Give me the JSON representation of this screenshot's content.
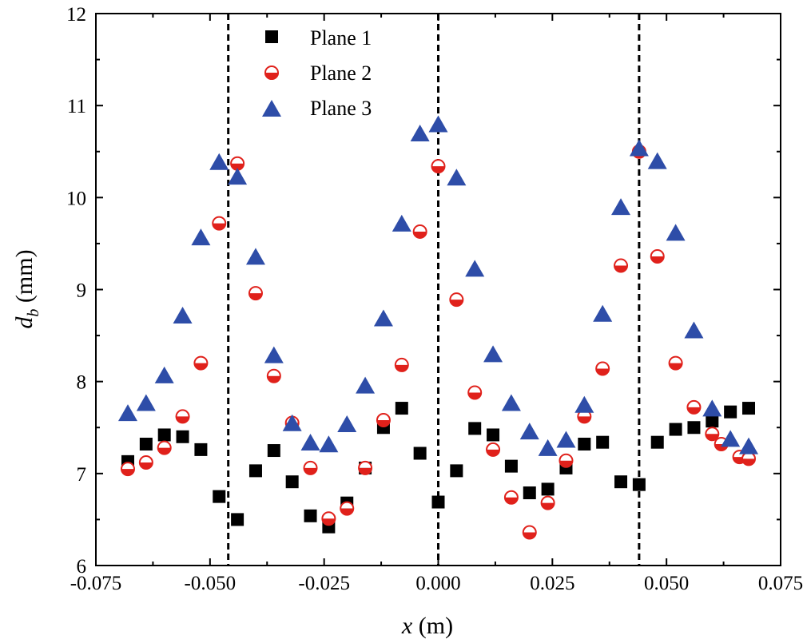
{
  "chart_data": {
    "type": "scatter",
    "title": "",
    "xlabel": "x (m)",
    "xlabel_var": "x",
    "xlabel_unit": "(m)",
    "ylabel": "d_b (mm)",
    "ylabel_var": "d",
    "ylabel_sub": "b",
    "ylabel_unit": "(mm)",
    "xlim": [
      -0.075,
      0.075
    ],
    "ylim": [
      6,
      12
    ],
    "xticks": [
      -0.075,
      -0.05,
      -0.025,
      0.0,
      0.025,
      0.05,
      0.075
    ],
    "xtick_labels": [
      "-0.075",
      "-0.050",
      "-0.025",
      "0.000",
      "0.025",
      "0.050",
      "0.075"
    ],
    "yticks": [
      6,
      7,
      8,
      9,
      10,
      11,
      12
    ],
    "ytick_labels": [
      "6",
      "7",
      "8",
      "9",
      "10",
      "11",
      "12"
    ],
    "grid": false,
    "legend_position": "top-center",
    "reference_lines_x": [
      -0.046,
      0.0,
      0.044
    ],
    "series": [
      {
        "name": "Plane 1",
        "marker": "square",
        "color": "#000000",
        "x": [
          -0.068,
          -0.064,
          -0.06,
          -0.056,
          -0.052,
          -0.048,
          -0.044,
          -0.04,
          -0.036,
          -0.032,
          -0.028,
          -0.024,
          -0.02,
          -0.016,
          -0.012,
          -0.008,
          -0.004,
          0.0,
          0.004,
          0.008,
          0.012,
          0.016,
          0.02,
          0.024,
          0.028,
          0.032,
          0.036,
          0.04,
          0.044,
          0.048,
          0.052,
          0.056,
          0.06,
          0.064,
          0.068
        ],
        "y": [
          7.13,
          7.32,
          7.42,
          7.4,
          7.26,
          6.75,
          6.5,
          7.03,
          7.25,
          6.91,
          6.54,
          6.42,
          6.68,
          7.06,
          7.5,
          7.71,
          7.22,
          6.69,
          7.03,
          7.49,
          7.42,
          7.08,
          6.79,
          6.83,
          7.06,
          7.32,
          7.34,
          6.91,
          6.88,
          7.34,
          7.48,
          7.5,
          7.57,
          7.67,
          7.71
        ]
      },
      {
        "name": "Plane 2",
        "marker": "half-circle",
        "color": "#e0211b",
        "x": [
          -0.068,
          -0.064,
          -0.06,
          -0.056,
          -0.052,
          -0.048,
          -0.044,
          -0.04,
          -0.036,
          -0.032,
          -0.028,
          -0.024,
          -0.02,
          -0.016,
          -0.012,
          -0.008,
          -0.004,
          0.0,
          0.004,
          0.008,
          0.012,
          0.016,
          0.02,
          0.024,
          0.028,
          0.032,
          0.036,
          0.04,
          0.044,
          0.048,
          0.052,
          0.056,
          0.06,
          0.062,
          0.066,
          0.068
        ],
        "y": [
          7.05,
          7.12,
          7.28,
          7.62,
          8.2,
          9.72,
          10.37,
          8.96,
          8.06,
          7.55,
          7.06,
          6.51,
          6.62,
          7.06,
          7.58,
          8.18,
          9.63,
          10.34,
          8.89,
          7.88,
          7.26,
          6.74,
          6.36,
          6.68,
          7.14,
          7.62,
          8.14,
          9.26,
          10.5,
          9.36,
          8.2,
          7.72,
          7.43,
          7.32,
          7.18,
          7.16
        ]
      },
      {
        "name": "Plane 3",
        "marker": "triangle",
        "color": "#2e4da8",
        "x": [
          -0.068,
          -0.064,
          -0.06,
          -0.056,
          -0.052,
          -0.048,
          -0.044,
          -0.04,
          -0.036,
          -0.032,
          -0.028,
          -0.024,
          -0.02,
          -0.016,
          -0.012,
          -0.008,
          -0.004,
          0.0,
          0.004,
          0.008,
          0.012,
          0.016,
          0.02,
          0.024,
          0.028,
          0.032,
          0.036,
          0.04,
          0.044,
          0.048,
          0.052,
          0.056,
          0.06,
          0.064,
          0.068
        ],
        "y": [
          7.64,
          7.75,
          8.05,
          8.7,
          9.55,
          10.37,
          10.21,
          9.34,
          8.27,
          7.53,
          7.32,
          7.3,
          7.52,
          7.94,
          8.67,
          9.7,
          10.68,
          10.78,
          10.2,
          9.21,
          8.28,
          7.75,
          7.44,
          7.26,
          7.35,
          7.73,
          8.72,
          9.88,
          10.52,
          10.38,
          9.6,
          8.54,
          7.69,
          7.36,
          7.28
        ]
      }
    ]
  }
}
